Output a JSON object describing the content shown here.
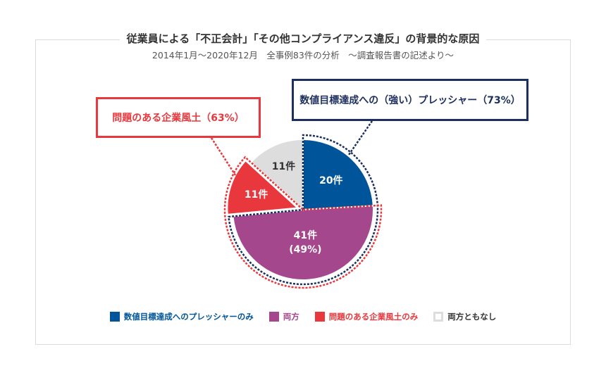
{
  "title": "従業員による「不正会計」「その他コンプライアンス違反」の背景的な原因",
  "subtitle": "2014年1月〜2020年12月　全事例83件の分析　〜調査報告書の記述より〜",
  "callouts": {
    "pressure": "数値目標達成への（強い）プレッシャー（73%）",
    "culture": "問題のある企業風土（63%）"
  },
  "colors": {
    "pressure": "#00559a",
    "both": "#a5478d",
    "culture": "#e8383d",
    "neither": "#dddddd",
    "pressure_outline": "#1c2f5e",
    "culture_outline": "#e8383d"
  },
  "chart_data": {
    "type": "pie",
    "title": "従業員による「不正会計」「その他コンプライアンス違反」の背景的な原因",
    "slices": [
      {
        "key": "pressure",
        "label": "数値目標達成へのプレッシャーのみ",
        "value": 20,
        "data_label": "20件"
      },
      {
        "key": "both",
        "label": "両方",
        "value": 41,
        "data_label": "41件",
        "data_label_2": "(49%)"
      },
      {
        "key": "culture",
        "label": "問題のある企業風土のみ",
        "value": 11,
        "data_label": "11件"
      },
      {
        "key": "neither",
        "label": "両方ともなし",
        "value": 11,
        "data_label": "11件"
      }
    ],
    "total": 83,
    "legend_position": "bottom"
  },
  "legend": [
    {
      "label": "数値目標達成へのプレッシャーのみ",
      "color": "#00559a",
      "text_color": "#00559a"
    },
    {
      "label": "両方",
      "color": "#a5478d",
      "text_color": "#a5478d"
    },
    {
      "label": "問題のある企業風土のみ",
      "color": "#e8383d",
      "text_color": "#e8383d"
    },
    {
      "label": "両方ともなし",
      "color": "#dddddd",
      "text_color": "#333333"
    }
  ]
}
